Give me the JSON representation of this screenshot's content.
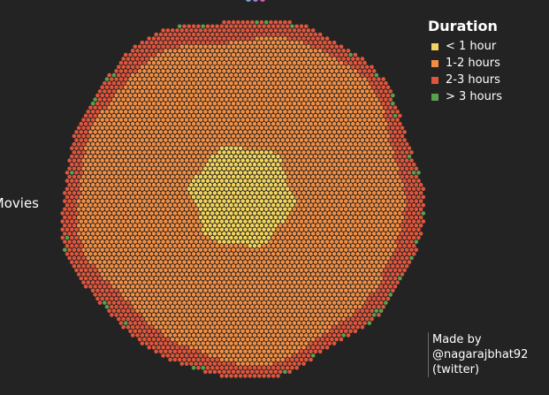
{
  "side_label": "Movies",
  "credit": {
    "line1": "Made by",
    "line2": "@nagarajbhat92",
    "line3": "(twitter)"
  },
  "chart_data": {
    "type": "scatter",
    "title": "",
    "legend": {
      "title": "Duration",
      "position": "top-right",
      "entries": [
        {
          "label": "< 1 hour",
          "color": "#f2d45c"
        },
        {
          "label": "1-2 hours",
          "color": "#f28e43"
        },
        {
          "label": "2-3 hours",
          "color": "#e0553b"
        },
        {
          "label": "> 3 hours",
          "color": "#59a14f"
        }
      ]
    },
    "layout": "radial dot packing, shorter durations at the center",
    "grid": false
  }
}
